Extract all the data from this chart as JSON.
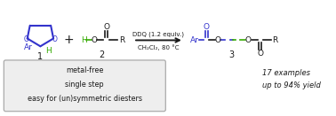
{
  "bg_color": "#ffffff",
  "blue": "#3333cc",
  "green": "#33aa00",
  "black": "#1a1a1a",
  "box_lines": [
    "metal-free",
    "single step",
    "easy for (un)symmetric diesters"
  ],
  "arrow_text_top": "DDQ (1.2 equiv.)",
  "arrow_text_bot": "CH₂Cl₂, 80 °C",
  "yield_text": "17 examples\nup to 94% yield",
  "figsize": [
    3.78,
    1.31
  ],
  "dpi": 100
}
